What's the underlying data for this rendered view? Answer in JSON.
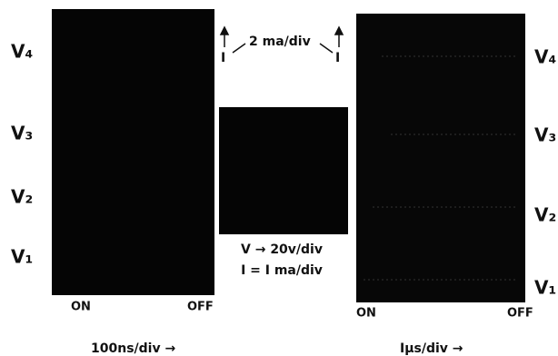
{
  "left_panel": {
    "levels": [
      "V₄",
      "V₃",
      "V₂",
      "V₁"
    ],
    "on": "ON",
    "off": "OFF",
    "timebase": "100ns/div →"
  },
  "center_panel": {
    "current_marker_left": "I",
    "current_scale": "2 ma/div",
    "current_marker_right": "I",
    "voltage_scale": "V → 20v/div",
    "current_scale_center": "I = I ma/div"
  },
  "right_panel": {
    "levels": [
      "V₄",
      "V₃",
      "V₂",
      "V₁"
    ],
    "on": "ON",
    "off": "OFF",
    "timebase": "Iμs/div →"
  }
}
